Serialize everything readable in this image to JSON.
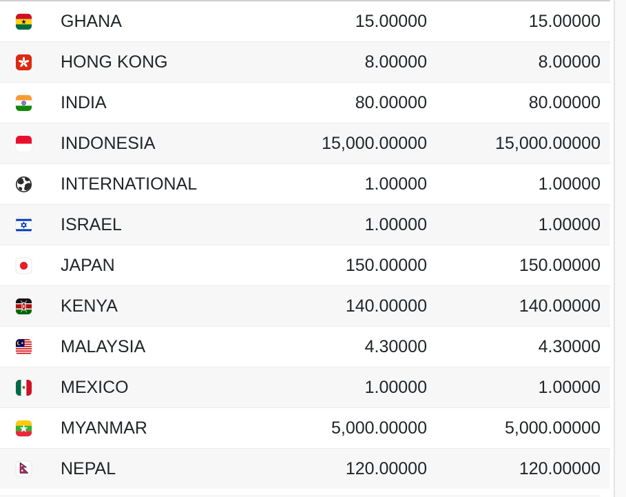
{
  "table": {
    "columns": [
      {
        "id": "country",
        "align": "left"
      },
      {
        "id": "value1",
        "align": "right"
      },
      {
        "id": "value2",
        "align": "right"
      }
    ],
    "rows": [
      {
        "country": "GHANA",
        "flag": "ghana",
        "value1": "15.00000",
        "value2": "15.00000"
      },
      {
        "country": "HONG KONG",
        "flag": "hong-kong",
        "value1": "8.00000",
        "value2": "8.00000"
      },
      {
        "country": "INDIA",
        "flag": "india",
        "value1": "80.00000",
        "value2": "80.00000"
      },
      {
        "country": "INDONESIA",
        "flag": "indonesia",
        "value1": "15,000.00000",
        "value2": "15,000.00000"
      },
      {
        "country": "INTERNATIONAL",
        "flag": "international-globe",
        "value1": "1.00000",
        "value2": "1.00000"
      },
      {
        "country": "ISRAEL",
        "flag": "israel",
        "value1": "1.00000",
        "value2": "1.00000"
      },
      {
        "country": "JAPAN",
        "flag": "japan",
        "value1": "150.00000",
        "value2": "150.00000"
      },
      {
        "country": "KENYA",
        "flag": "kenya",
        "value1": "140.00000",
        "value2": "140.00000"
      },
      {
        "country": "MALAYSIA",
        "flag": "malaysia",
        "value1": "4.30000",
        "value2": "4.30000"
      },
      {
        "country": "MEXICO",
        "flag": "mexico",
        "value1": "1.00000",
        "value2": "1.00000"
      },
      {
        "country": "MYANMAR",
        "flag": "myanmar",
        "value1": "5,000.00000",
        "value2": "5,000.00000"
      },
      {
        "country": "NEPAL",
        "flag": "nepal",
        "value1": "120.00000",
        "value2": "120.00000"
      }
    ],
    "colors": {
      "stripe": "#f7f7f7",
      "row_border": "#ececec",
      "top_border": "#cfcfcf",
      "text": "#212529",
      "bottom_divider": "#e9e9e9",
      "gutter_bg": "#f9f9f9",
      "gutter_border": "#e3e3e3"
    }
  }
}
